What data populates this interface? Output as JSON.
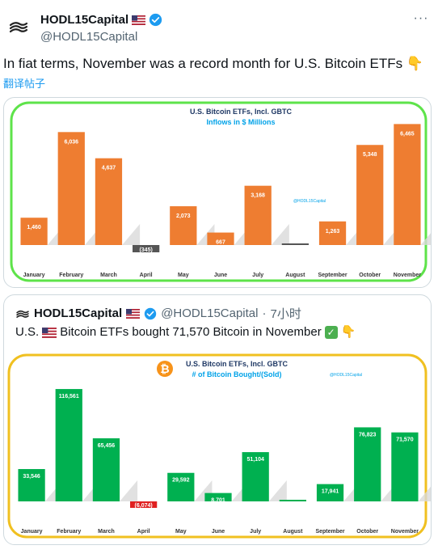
{
  "post": {
    "display_name": "HODL15Capital",
    "handle": "@HODL15Capital",
    "more_label": "···",
    "text": "In fiat terms, November was a record month for U.S. Bitcoin ETFs 👇",
    "translate_label": "翻译帖子"
  },
  "quote": {
    "display_name": "HODL15Capital",
    "handle": "@HODL15Capital",
    "separator": "·",
    "time": "7小时",
    "text_prefix": "U.S.",
    "text_main": "Bitcoin ETFs bought 71,570 Bitcoin in November",
    "text_suffix": "👇",
    "check_mark": "✓"
  },
  "colors": {
    "orange": "#ee7d31",
    "green": "#00b050",
    "negative_gray": "#555555",
    "negative_red": "#e02020",
    "frame1": "#5ee34a",
    "frame2": "#f0c020",
    "title_blue": "#1f3864",
    "subtitle_blue": "#00a2e8",
    "verified": "#1d9bf0",
    "bitcoin": "#f7931a"
  },
  "chart_data": [
    {
      "type": "bar",
      "title": "U.S. Bitcoin ETFs, Incl. GBTC",
      "subtitle": "Inflows in $ Millions",
      "watermark": "@HODL15Capital",
      "categories": [
        "January",
        "February",
        "March",
        "April",
        "May",
        "June",
        "July",
        "August",
        "September",
        "October",
        "November"
      ],
      "values": [
        1460,
        6036,
        4637,
        -345,
        2073,
        667,
        3168,
        0,
        1263,
        5348,
        6465
      ],
      "labels": [
        "1,460",
        "6,036",
        "4,637",
        "(345)",
        "2,073",
        "667",
        "3,168",
        "",
        "1,263",
        "5,348",
        "6,465"
      ],
      "ylim": [
        -600,
        7000
      ]
    },
    {
      "type": "bar",
      "title": "U.S. Bitcoin ETFs, Incl. GBTC",
      "subtitle": "# of Bitcoin Bought/(Sold)",
      "watermark": "@HODL15Capital",
      "categories": [
        "January",
        "February",
        "March",
        "April",
        "May",
        "June",
        "July",
        "August",
        "September",
        "October",
        "November"
      ],
      "values": [
        33546,
        116561,
        65456,
        -6074,
        29592,
        8701,
        51104,
        0,
        17941,
        76823,
        71570
      ],
      "labels": [
        "33,546",
        "116,561",
        "65,456",
        "(6,074)",
        "29,592",
        "8,701",
        "51,104",
        "",
        "17,941",
        "76,823",
        "71,570"
      ],
      "ylim": [
        -10000,
        125000
      ]
    }
  ]
}
